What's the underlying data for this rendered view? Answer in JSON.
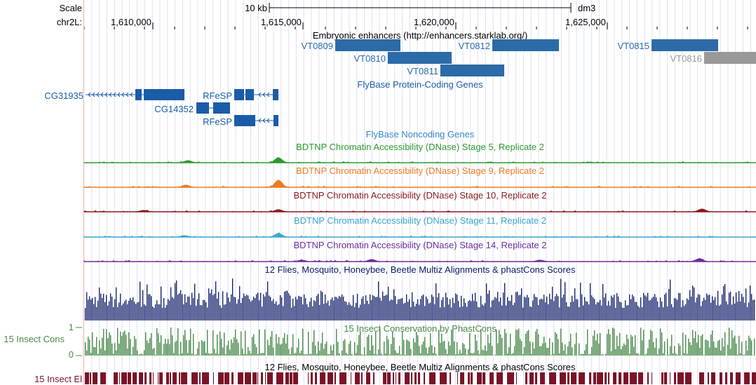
{
  "ruler": {
    "scale_label": "Scale",
    "scale_bar_label": "10 kb",
    "assembly": "dm3",
    "chrom_label": "chr2L:",
    "ticks": [
      "1,610,000",
      "1,615,000",
      "1,620,000",
      "1,625,000"
    ]
  },
  "tracks": {
    "enhancers": {
      "title": "Embryonic enhancers (http://enhancers.starklab.org/)",
      "items": [
        "VT0809",
        "VT0810",
        "VT0811",
        "VT0812",
        "VT0815",
        "VT0816"
      ],
      "color": "#2c6aa8",
      "inactive_color": "#999999"
    },
    "genes": {
      "title": "FlyBase Protein-Coding Genes",
      "items": [
        "CG31935",
        "RFeSP",
        "CG14352",
        "RFeSP"
      ],
      "color": "#1a5ca8"
    },
    "noncoding": {
      "title": "FlyBase Noncoding Genes",
      "color": "#3a86c8"
    },
    "dnase_stage5": {
      "title": "BDTNP Chromatin Accessibility (DNase) Stage 5, Replicate 2",
      "color": "#2f9a2f"
    },
    "dnase_stage9": {
      "title": "BDTNP Chromatin Accessibility (DNase) Stage 9, Replicate 2",
      "color": "#ee7b22"
    },
    "dnase_stage10": {
      "title": "BDTNP Chromatin Accessibility (DNase) Stage 10, Replicate 2",
      "color": "#8b1a1a"
    },
    "dnase_stage11": {
      "title": "BDTNP Chromatin Accessibility (DNase) Stage 11, Replicate 2",
      "color": "#3aa7cc"
    },
    "dnase_stage14": {
      "title": "BDTNP Chromatin Accessibility (DNase) Stage 14, Replicate 2",
      "color": "#6b2f9a"
    },
    "multiz": {
      "title": "12 Flies, Mosquito, Honeybee, Beetle Multiz Alignments & phastCons Scores",
      "color": "#0c1a66"
    },
    "phastcons": {
      "title": "15 Insect Conservation by PhastCons",
      "side_label": "15 Insect Cons",
      "axis_max": "1",
      "axis_min": "0",
      "color": "#4a8a4a"
    },
    "multiz2": {
      "title": "12 Flies, Mosquito, Honeybee, Beetle Multiz Alignments & phastCons Scores"
    },
    "elements": {
      "side_label": "15 Insect El",
      "color": "#7a1428"
    }
  }
}
